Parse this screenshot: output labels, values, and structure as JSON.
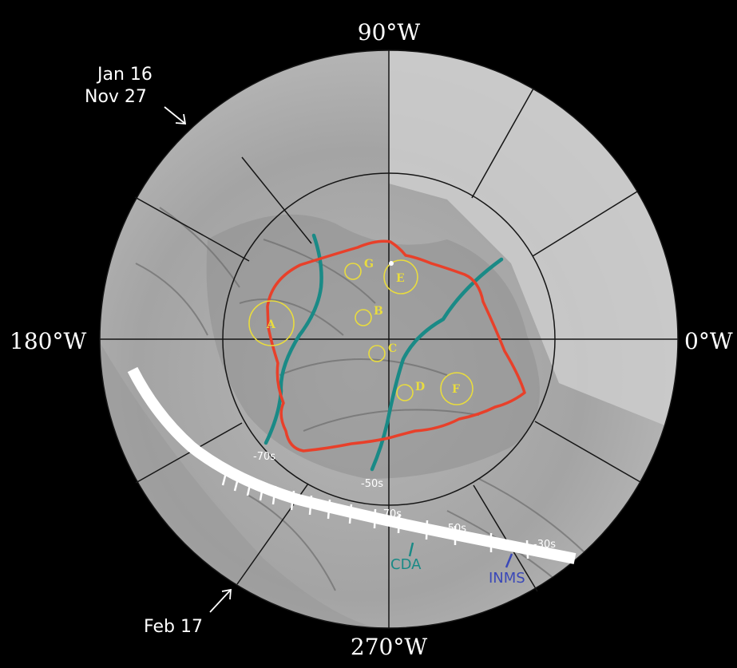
{
  "colors": {
    "background": "#000000",
    "surface_light": "#c9c9c9",
    "surface_mid": "#a9a9a9",
    "surface_dark": "#8e8e8e",
    "grid": "#1a1a1a",
    "terrain_boundary": "#e8402a",
    "sources": "#e9dc3e",
    "cda_track": "#1a8a86",
    "inms_label": "#3a48b8",
    "trajectory": "#ffffff"
  },
  "longitude_labels": {
    "top": "90°W",
    "right": "0°W",
    "bottom": "270°W",
    "left": "180°W"
  },
  "annotations": {
    "top_left_line1": "Jan 16",
    "top_left_line2": "Nov 27",
    "bottom_left": "Feb 17"
  },
  "sources": [
    "A",
    "B",
    "C",
    "D",
    "E",
    "F",
    "G"
  ],
  "ground_track_times": {
    "teal_left": "-70s",
    "teal_right": "-50s"
  },
  "trajectory_times": [
    "-70s",
    "-50s",
    "-30s"
  ],
  "instruments": {
    "cda": "CDA",
    "inms": "INMS"
  }
}
